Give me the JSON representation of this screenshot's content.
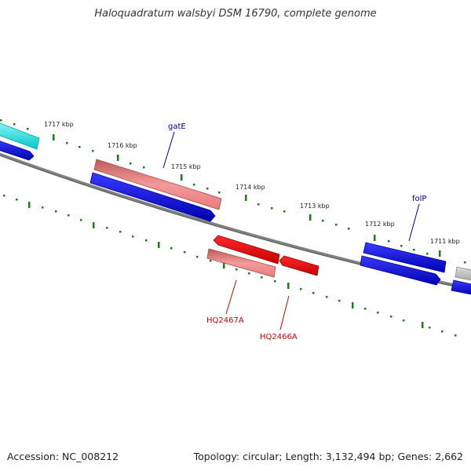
{
  "title": "Haloquadratum walsbyi DSM 16790, complete genome",
  "footer": {
    "accession": "Accession: NC_008212",
    "summary": "Topology: circular; Length: 3,132,494 bp; Genes: 2,662"
  },
  "ticks": [
    "1717 kbp",
    "1716 kbp",
    "1715 kbp",
    "1714 kbp",
    "1713 kbp",
    "1712 kbp",
    "1711 kbp"
  ],
  "gene_labels": {
    "gatE": "gatE",
    "folP": "folP",
    "hq2467a": "HQ2467A",
    "hq2466a": "HQ2466A"
  },
  "colors": {
    "forward_cds": "#0000dd",
    "reverse_cds": "#0000dd",
    "rna_forward": "#e87c7c",
    "rna_reverse": "#ee0000",
    "cyan_feature": "#00d8d8",
    "gray_feature": "#b8b8b8",
    "backbone": "#777777",
    "tick": "#1a7f1a",
    "blue_label": "#00008b",
    "red_label": "#cc0000"
  }
}
